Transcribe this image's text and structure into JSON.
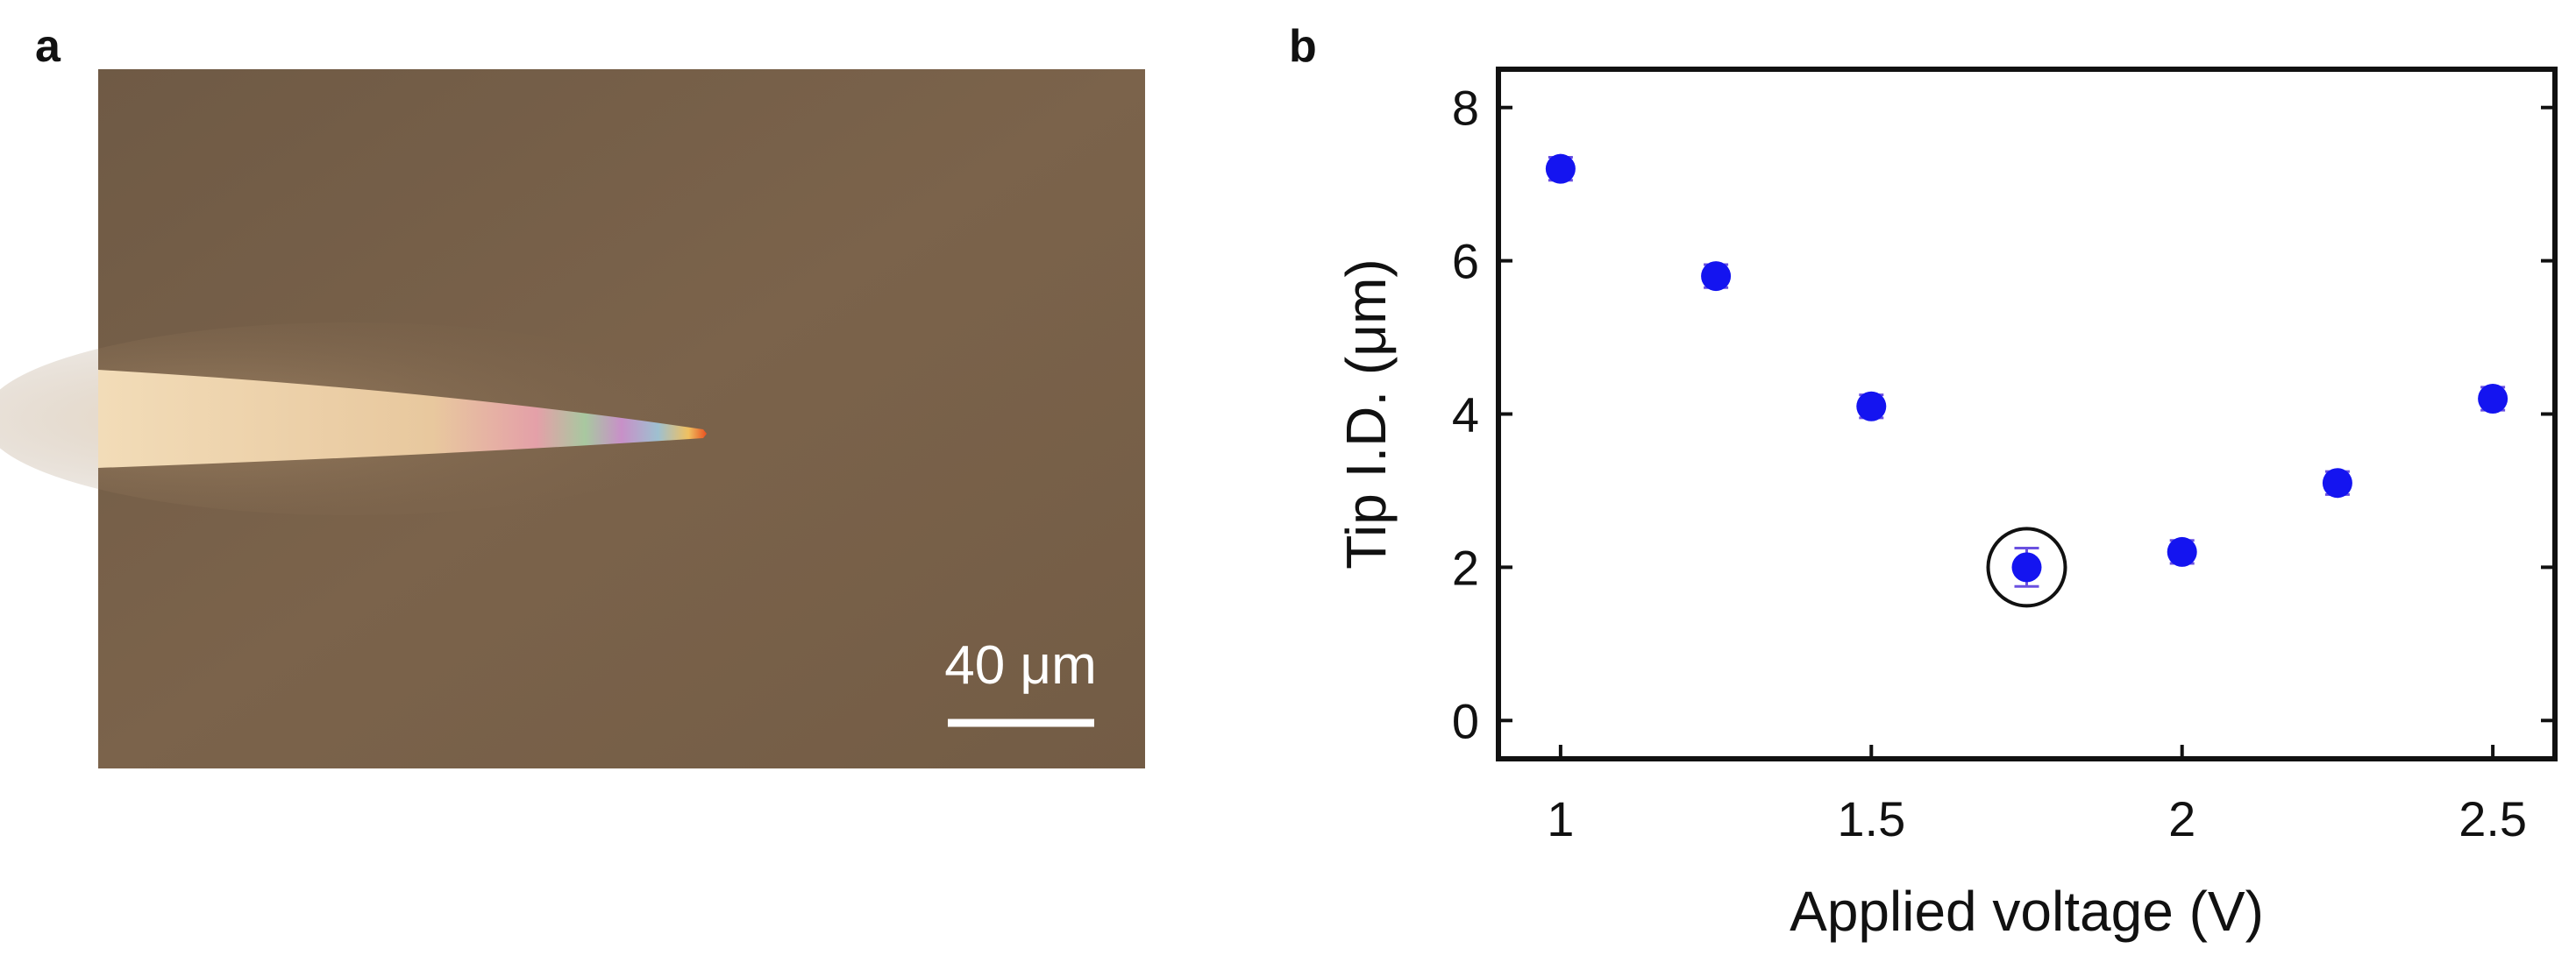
{
  "panel_labels": [
    "a",
    "b"
  ],
  "image": {
    "scale_bar_label": "40 μm"
  },
  "chart_data": {
    "type": "scatter",
    "x_label": "Applied voltage (V)",
    "y_label": "Tip I.D. (μm)",
    "x": [
      1,
      1.25,
      1.5,
      1.75,
      2,
      2.25,
      2.5
    ],
    "series": [
      {
        "color": "#1414f0",
        "values": [
          7.2,
          5.8,
          4.1,
          2.0,
          2.2,
          3.1,
          4.2
        ],
        "errors": [
          0.15,
          0.15,
          0.15,
          0.25,
          0.15,
          0.15,
          0.15
        ]
      }
    ],
    "xlim": [
      0.9,
      2.6
    ],
    "ylim": [
      -0.5,
      8.5
    ],
    "xticks": [
      1,
      1.5,
      2,
      2.5
    ],
    "yticks": [
      0,
      2,
      4,
      6,
      8
    ]
  }
}
